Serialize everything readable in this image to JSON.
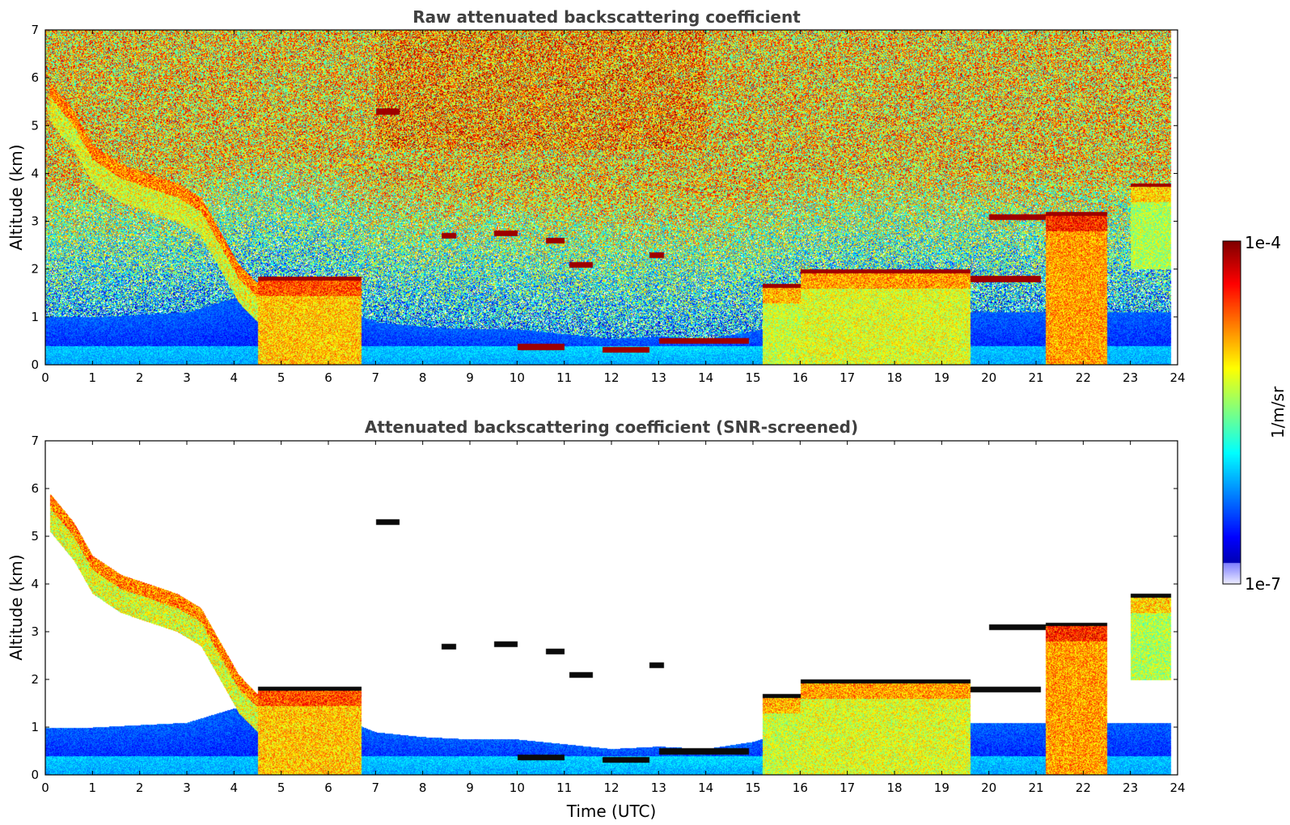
{
  "chart_data": [
    {
      "type": "heatmap",
      "title": "Raw attenuated backscattering coefficient",
      "xlabel": "",
      "ylabel": "Altitude (km)",
      "xlim": [
        0,
        24
      ],
      "ylim": [
        0,
        7
      ],
      "xticks": [
        "0",
        "1",
        "2",
        "3",
        "4",
        "5",
        "6",
        "7",
        "8",
        "9",
        "10",
        "11",
        "12",
        "13",
        "14",
        "15",
        "16",
        "17",
        "18",
        "19",
        "20",
        "21",
        "22",
        "23",
        "24"
      ],
      "yticks": [
        "0",
        "1",
        "2",
        "3",
        "4",
        "5",
        "6",
        "7"
      ],
      "screened": false
    },
    {
      "type": "heatmap",
      "title": "Attenuated backscattering coefficient (SNR-screened)",
      "xlabel": "Time (UTC)",
      "ylabel": "Altitude (km)",
      "xlim": [
        0,
        24
      ],
      "ylim": [
        0,
        7
      ],
      "xticks": [
        "0",
        "1",
        "2",
        "3",
        "4",
        "5",
        "6",
        "7",
        "8",
        "9",
        "10",
        "11",
        "12",
        "13",
        "14",
        "15",
        "16",
        "17",
        "18",
        "19",
        "20",
        "21",
        "22",
        "23",
        "24"
      ],
      "yticks": [
        "0",
        "1",
        "2",
        "3",
        "4",
        "5",
        "6",
        "7"
      ],
      "screened": true
    }
  ],
  "colorbar": {
    "label": "1/m/sr",
    "min_label": "1e-7",
    "max_label": "1e-4",
    "colormap": "jet"
  },
  "features": {
    "boundary_layer_top_km": [
      [
        0,
        1.0
      ],
      [
        1,
        1.0
      ],
      [
        2,
        1.05
      ],
      [
        3,
        1.1
      ],
      [
        4,
        1.4
      ],
      [
        5,
        1.5
      ],
      [
        6,
        1.3
      ],
      [
        7,
        0.9
      ],
      [
        8,
        0.8
      ],
      [
        9,
        0.75
      ],
      [
        10,
        0.75
      ],
      [
        11,
        0.65
      ],
      [
        12,
        0.55
      ],
      [
        13,
        0.6
      ],
      [
        14,
        0.55
      ],
      [
        15,
        0.7
      ],
      [
        16,
        1.0
      ],
      [
        17,
        1.1
      ],
      [
        18,
        1.1
      ],
      [
        19,
        1.1
      ],
      [
        20,
        1.1
      ],
      [
        21,
        1.1
      ],
      [
        22,
        1.1
      ],
      [
        23,
        1.1
      ],
      [
        24,
        1.1
      ]
    ],
    "descending_cloud": [
      [
        0.1,
        5.8
      ],
      [
        0.6,
        5.2
      ],
      [
        1.0,
        4.5
      ],
      [
        1.6,
        4.1
      ],
      [
        2.2,
        3.9
      ],
      [
        2.8,
        3.7
      ],
      [
        3.3,
        3.4
      ],
      [
        3.7,
        2.7
      ],
      [
        4.1,
        2.0
      ],
      [
        4.5,
        1.6
      ]
    ],
    "cloud_layers": [
      {
        "t0": 4.5,
        "t1": 6.7,
        "top": 1.85,
        "base": 0.0,
        "level": 0.68
      },
      {
        "t0": 15.2,
        "t1": 16.0,
        "top": 1.7,
        "base": 0.0,
        "level": 0.58
      },
      {
        "t0": 16.0,
        "t1": 19.6,
        "top": 2.0,
        "base": 0.0,
        "level": 0.6
      },
      {
        "t0": 21.2,
        "t1": 22.5,
        "top": 3.2,
        "base": 0.0,
        "level": 0.72
      },
      {
        "t0": 23.0,
        "t1": 23.9,
        "top": 3.8,
        "base": 2.0,
        "level": 0.55
      }
    ],
    "thin_layers": [
      {
        "t0": 7.0,
        "t1": 7.5,
        "alt": 5.3
      },
      {
        "t0": 8.4,
        "t1": 8.7,
        "alt": 2.7
      },
      {
        "t0": 9.5,
        "t1": 10.0,
        "alt": 2.75
      },
      {
        "t0": 10.6,
        "t1": 11.0,
        "alt": 2.6
      },
      {
        "t0": 11.1,
        "t1": 11.6,
        "alt": 2.1
      },
      {
        "t0": 12.8,
        "t1": 13.1,
        "alt": 2.3
      },
      {
        "t0": 10.0,
        "t1": 11.0,
        "alt": 0.38
      },
      {
        "t0": 11.8,
        "t1": 12.8,
        "alt": 0.32
      },
      {
        "t0": 13.0,
        "t1": 14.9,
        "alt": 0.5
      },
      {
        "t0": 19.6,
        "t1": 21.1,
        "alt": 1.8
      },
      {
        "t0": 20.0,
        "t1": 21.2,
        "alt": 3.1
      }
    ]
  }
}
